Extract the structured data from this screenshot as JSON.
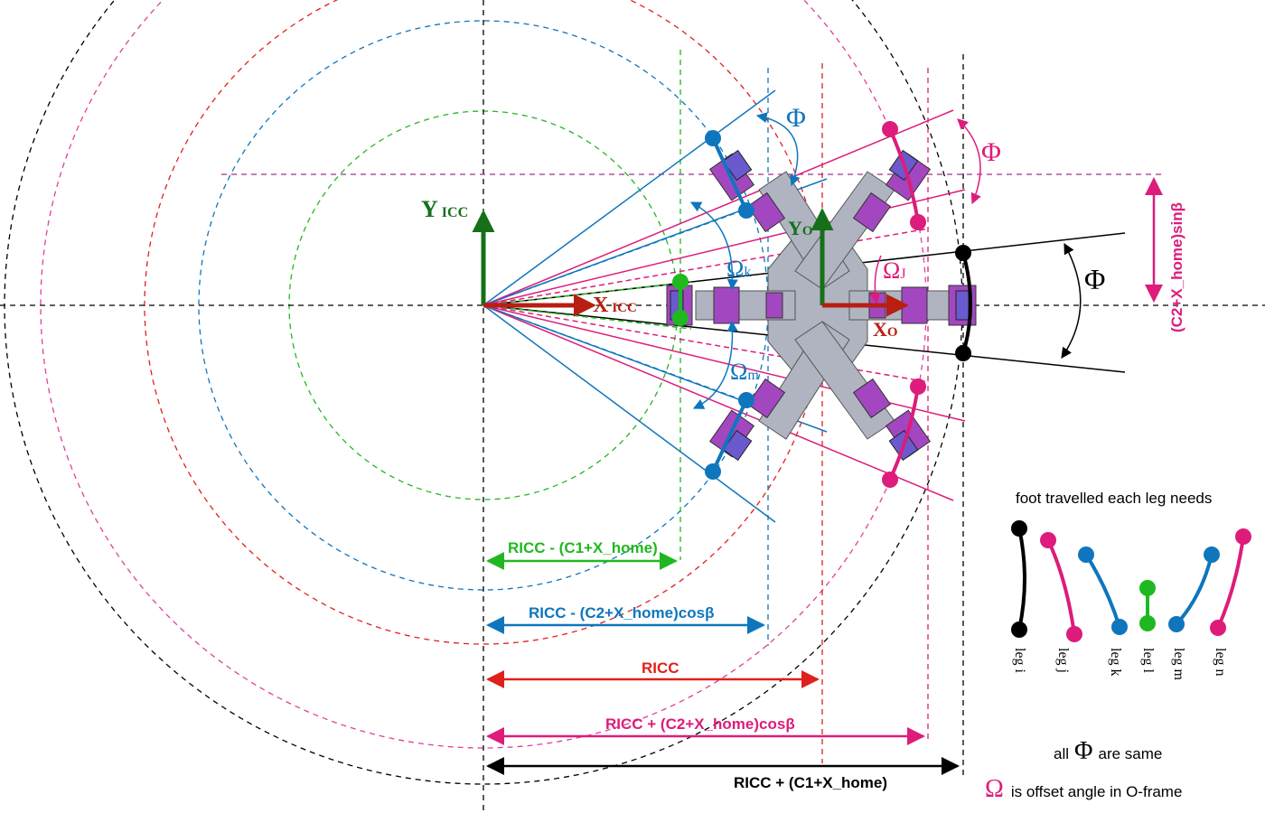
{
  "axes": {
    "y_icc_main": "Y",
    "y_icc_sub": "ICC",
    "x_icc_main": "X",
    "x_icc_sub": "ICC",
    "y_o_main": "Y",
    "y_o_sub": "O",
    "x_o_main": "X",
    "x_o_sub": "O"
  },
  "angles": {
    "phi_symbol": "Φ",
    "omega_k": "Ω",
    "omega_k_sub": "k",
    "omega_j": "Ω",
    "omega_j_sub": "J",
    "omega_m": "Ω",
    "omega_m_sub": "m"
  },
  "dimensions": {
    "sin_label": "(C2+X_home)sinβ",
    "d1": "RICC - (C1+X_home)",
    "d2": "RICC - (C2+X_home)cosβ",
    "d3": "RICC",
    "d4": "RICC + (C2+X_home)cosβ",
    "d5": "RICC + (C1+X_home)"
  },
  "legend": {
    "title": "foot travelled each leg needs",
    "legs": [
      "leg i",
      "leg j",
      "leg k",
      "leg l",
      "leg m",
      "leg n"
    ],
    "note_prefix": "all",
    "note_symbol": "Φ",
    "note_suffix": "are same",
    "omega_symbol": "Ω",
    "omega_text": "is offset angle in O-frame"
  },
  "colors": {
    "black": "#000000",
    "red": "#e0201c",
    "blue": "#0f76bd",
    "green": "#20b820",
    "magenta": "#dd1c7b",
    "dark_green": "#16701a",
    "dark_red": "#b81e12",
    "body_gray": "#b0b4c0",
    "purple": "#a347c0"
  }
}
